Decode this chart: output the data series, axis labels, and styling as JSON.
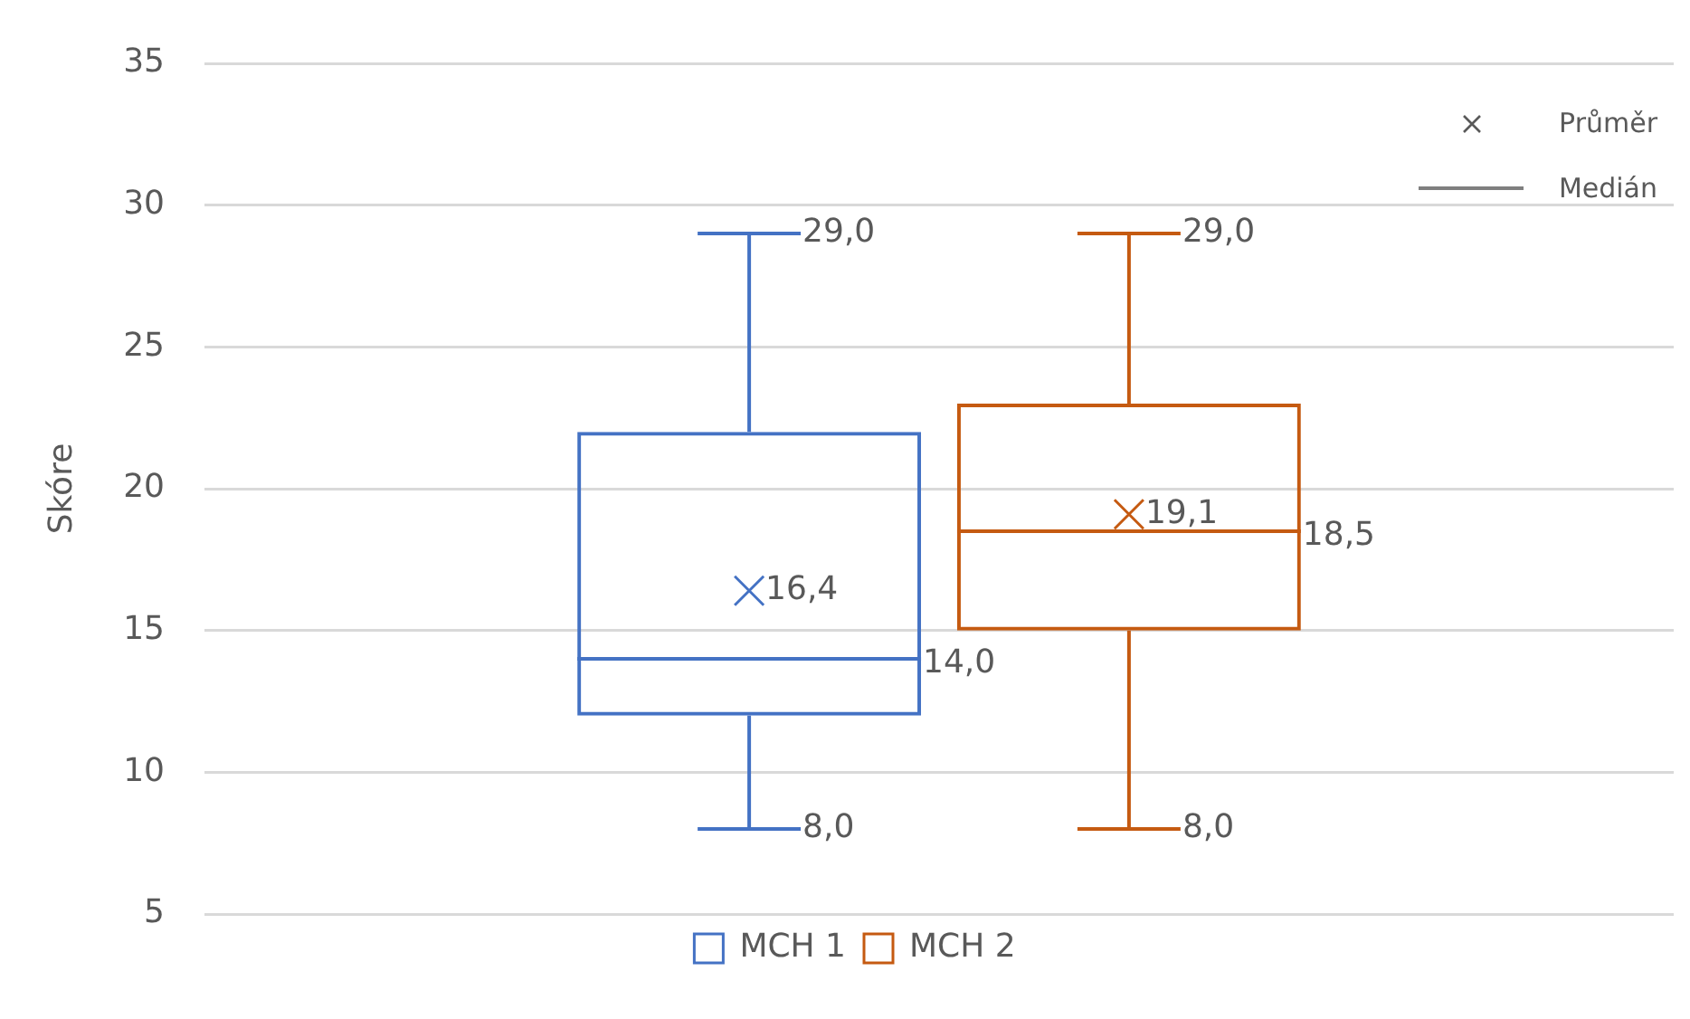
{
  "chart_data": {
    "type": "box",
    "ylabel": "Skóre",
    "categories": [
      null
    ],
    "series": [
      {
        "name": "MCH 1",
        "color": "#4472c4",
        "boxes": [
          {
            "low": 8,
            "q1": 12,
            "median": 14,
            "q3": 22,
            "high": 29,
            "mean": 16.4
          }
        ],
        "value_labels": [
          {
            "high": "29,0",
            "low": "8,0",
            "median": "14,0",
            "mean": "16,4"
          }
        ]
      },
      {
        "name": "MCH 2",
        "color": "#c55a11",
        "boxes": [
          {
            "low": 8,
            "q1": 15,
            "median": 18.5,
            "q3": 23,
            "high": 29,
            "mean": 19.1
          }
        ],
        "value_labels": [
          {
            "high": "29,0",
            "low": "8,0",
            "median": "18,5",
            "mean": "19,1"
          }
        ]
      }
    ],
    "ylim": [
      5,
      35
    ],
    "yticks": [
      5,
      10,
      15,
      20,
      25,
      30,
      35
    ],
    "grid": "y",
    "legend": "bottom",
    "annotations": [
      "Průměr",
      "Medián"
    ]
  }
}
